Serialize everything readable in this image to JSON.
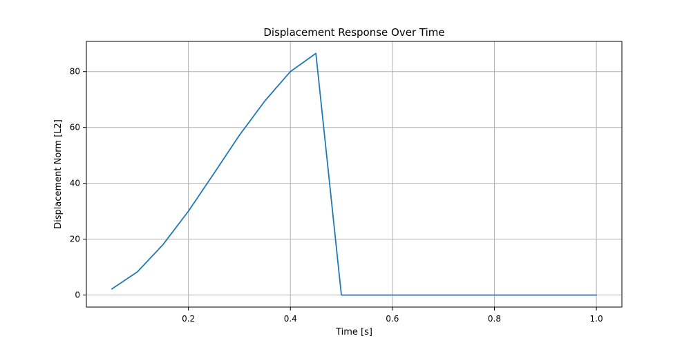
{
  "chart_data": {
    "type": "line",
    "title": "Displacement Response Over Time",
    "xlabel": "Time [s]",
    "ylabel": "Displacement Norm [L2]",
    "xlim": [
      -0.0,
      1.05
    ],
    "ylim": [
      -4.3,
      90.8
    ],
    "xticks": [
      0.2,
      0.4,
      0.6,
      0.8,
      1.0
    ],
    "xtick_labels": [
      "0.2",
      "0.4",
      "0.6",
      "0.8",
      "1.0"
    ],
    "yticks": [
      0,
      20,
      40,
      60,
      80
    ],
    "ytick_labels": [
      "0",
      "20",
      "40",
      "60",
      "80"
    ],
    "grid": true,
    "line_color": "#1f77b4",
    "series": [
      {
        "x": [
          0.05,
          0.1,
          0.15,
          0.2,
          0.25,
          0.3,
          0.35,
          0.4,
          0.45,
          0.5,
          0.55,
          0.6,
          0.65,
          0.7,
          0.75,
          0.8,
          0.85,
          0.9,
          0.95,
          1.0
        ],
        "y": [
          2.2,
          8.3,
          18.0,
          30.0,
          43.5,
          57.2,
          69.5,
          80.0,
          86.5,
          0.0,
          0.0,
          0.0,
          0.0,
          0.0,
          0.0,
          0.0,
          0.0,
          0.0,
          0.0,
          0.0
        ]
      }
    ]
  }
}
